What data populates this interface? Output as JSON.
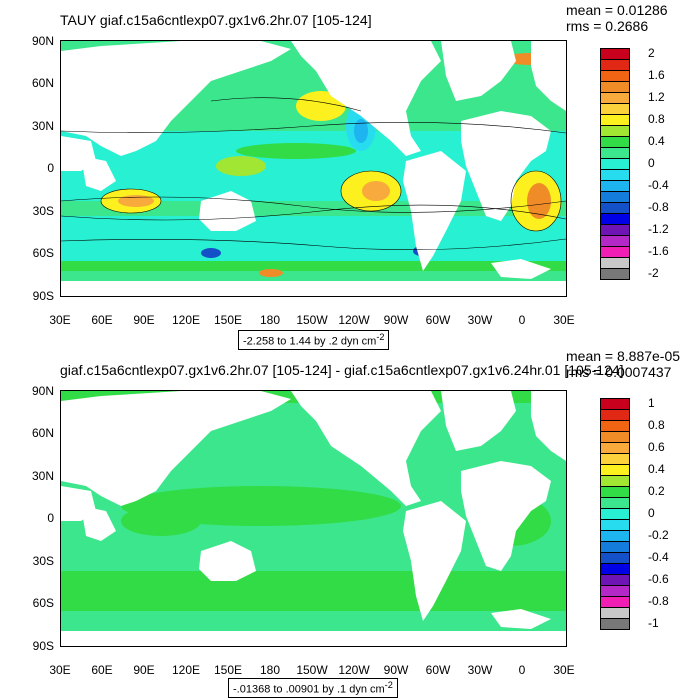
{
  "panels": [
    {
      "title": "TAUY giaf.c15a6cntlexp07.gx1v6.2hr.07 [105-124]",
      "mean_label": "mean = 0.01286",
      "rms_label": "rms = 0.2686",
      "range_text": "-2.258 to 1.44 by .2 dyn cm",
      "range_exp": "-2",
      "lat_labels": [
        "90N",
        "60N",
        "30N",
        "0",
        "30S",
        "60S",
        "90S"
      ],
      "lon_labels": [
        "30E",
        "60E",
        "90E",
        "120E",
        "150E",
        "180",
        "150W",
        "120W",
        "90W",
        "60W",
        "30W",
        "0",
        "30E"
      ],
      "legend_labels": [
        "2",
        "1.6",
        "1.2",
        "0.8",
        "0.4",
        "0",
        "-0.4",
        "-0.8",
        "-1.2",
        "-1.6",
        "-2"
      ],
      "legend_colors": [
        "#c8001e",
        "#e02814",
        "#f06414",
        "#f08c28",
        "#f8aa3c",
        "#fcd23c",
        "#fcf01e",
        "#a0e632",
        "#32dc46",
        "#3ce68c",
        "#28f0d2",
        "#28dcf0",
        "#1eb4f0",
        "#147ddc",
        "#1450c8",
        "#0000e6",
        "#6e14b4",
        "#b428c8",
        "#f01eb4",
        "#c8c8c8",
        "#787878"
      ]
    },
    {
      "title": "giaf.c15a6cntlexp07.gx1v6.2hr.07 [105-124] - giaf.c15a6cntlexp07.gx1v6.24hr.01 [105-124]",
      "mean_label": "mean = 8.887e-05",
      "rms_label": "rms = 0.0007437",
      "range_text": "-.01368 to .00901 by .1 dyn cm",
      "range_exp": "-2",
      "lat_labels": [
        "90N",
        "60N",
        "30N",
        "0",
        "30S",
        "60S",
        "90S"
      ],
      "lon_labels": [
        "30E",
        "60E",
        "90E",
        "120E",
        "150E",
        "180",
        "150W",
        "120W",
        "90W",
        "60W",
        "30W",
        "0",
        "30E"
      ],
      "legend_labels": [
        "1",
        "0.8",
        "0.6",
        "0.4",
        "0.2",
        "0",
        "-0.2",
        "-0.4",
        "-0.6",
        "-0.8",
        "-1"
      ],
      "legend_colors": [
        "#c8001e",
        "#e02814",
        "#f06414",
        "#f08c28",
        "#f8aa3c",
        "#fcd23c",
        "#fcf01e",
        "#a0e632",
        "#32dc46",
        "#3ce68c",
        "#28f0d2",
        "#28dcf0",
        "#1eb4f0",
        "#147ddc",
        "#1450c8",
        "#0000e6",
        "#6e14b4",
        "#b428c8",
        "#f01eb4",
        "#c8c8c8",
        "#787878"
      ]
    }
  ]
}
